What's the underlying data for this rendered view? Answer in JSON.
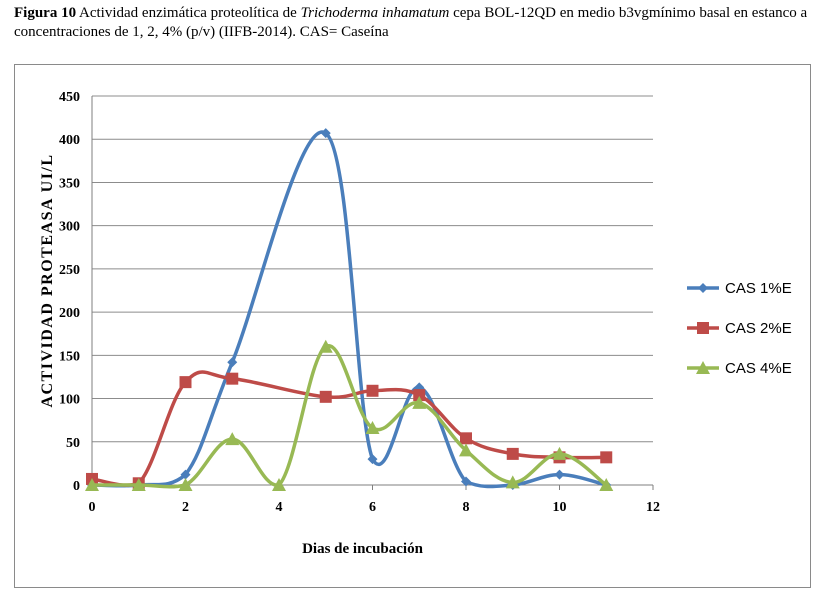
{
  "caption": {
    "label": "Figura 10",
    "part1": " Actividad enzimática proteolítica de ",
    "species": "Trichoderma inhamatum",
    "part2": " cepa BOL-12QD en medio b3vgmínimo basal en estanco a concentraciones de 1, 2, 4% (p/v) (IIFB-2014). CAS= Caseína"
  },
  "chart_data": {
    "type": "line",
    "xlabel": "Dias de incubación",
    "ylabel": "ACTIVIDAD PROTEASA UI/L",
    "xlim": [
      0,
      12
    ],
    "ylim": [
      0,
      450
    ],
    "xticks": [
      0,
      2,
      4,
      6,
      8,
      10,
      12
    ],
    "yticks": [
      0,
      50,
      100,
      150,
      200,
      250,
      300,
      350,
      400,
      450
    ],
    "grid": "horizontal",
    "legend_position": "right",
    "series": [
      {
        "name": "CAS 1%E",
        "color": "#4a7ebb",
        "marker": "diamond",
        "x": [
          0,
          1,
          2,
          3,
          5,
          6,
          7,
          8,
          9,
          10,
          11
        ],
        "y": [
          0,
          0,
          12,
          142,
          407,
          30,
          113,
          4,
          0,
          12,
          0
        ]
      },
      {
        "name": "CAS 2%E",
        "color": "#be4b48",
        "marker": "square",
        "x": [
          0,
          1,
          2,
          3,
          5,
          6,
          7,
          8,
          9,
          10,
          11
        ],
        "y": [
          7,
          2,
          119,
          123,
          102,
          109,
          104,
          54,
          36,
          32,
          32
        ]
      },
      {
        "name": "CAS 4%E",
        "color": "#98b954",
        "marker": "triangle",
        "x": [
          0,
          1,
          2,
          3,
          4,
          5,
          6,
          7,
          8,
          9,
          10,
          11
        ],
        "y": [
          0,
          0,
          0,
          53,
          0,
          160,
          66,
          95,
          40,
          3,
          36,
          0
        ]
      }
    ]
  }
}
